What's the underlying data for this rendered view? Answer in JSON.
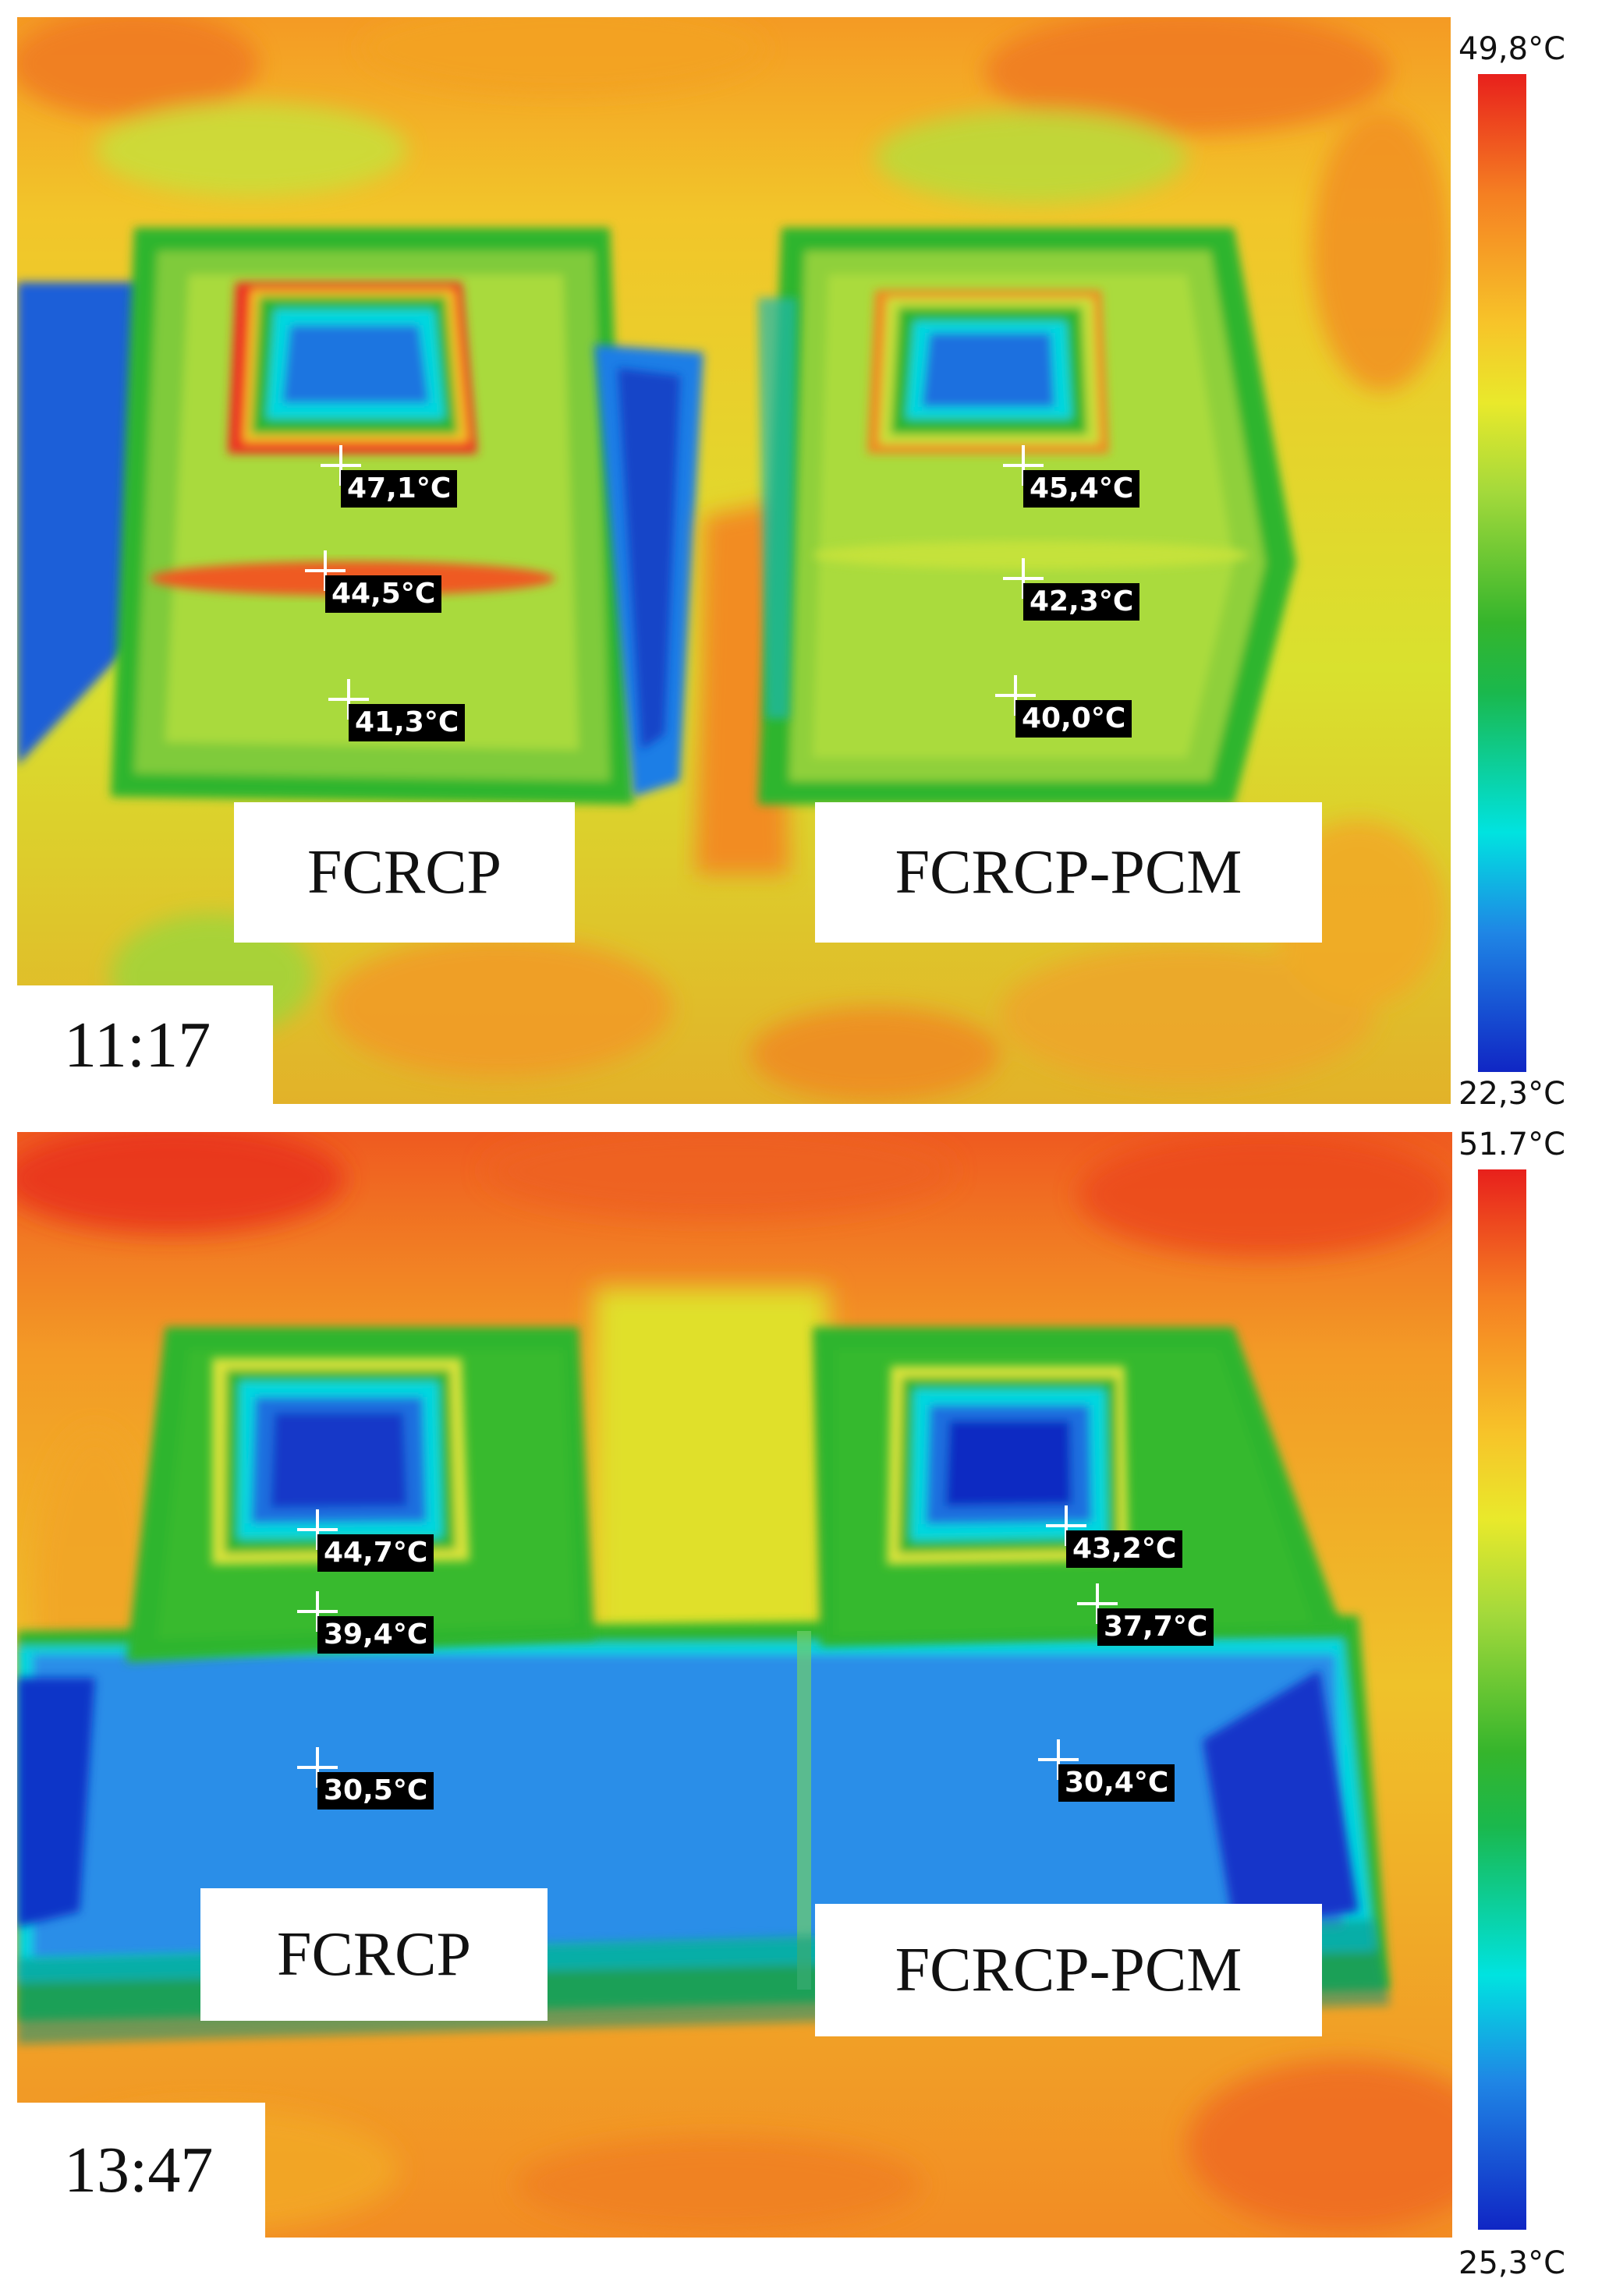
{
  "panels": [
    {
      "time": "11:17",
      "labels": {
        "left": "FCRCP",
        "right": "FCRCP-PCM"
      },
      "scale": {
        "max": "49,8°C",
        "min": "22,3°C"
      },
      "points": [
        "47,1°C",
        "44,5°C",
        "41,3°C",
        "45,4°C",
        "42,3°C",
        "40,0°C"
      ]
    },
    {
      "time": "13:47",
      "labels": {
        "left": "FCRCP",
        "right": "FCRCP-PCM"
      },
      "scale": {
        "max": "51.7°C",
        "min": "25,3°C"
      },
      "points": [
        "44,7°C",
        "39,4°C",
        "30,5°C",
        "43,2°C",
        "37,7°C",
        "30,4°C"
      ]
    }
  ],
  "palette": {
    "hot": "#e8201c",
    "warm": "#f57f22",
    "mid": "#e9e92b",
    "green": "#35b52c",
    "cyan": "#00e3e0",
    "cold": "#1026c4"
  }
}
